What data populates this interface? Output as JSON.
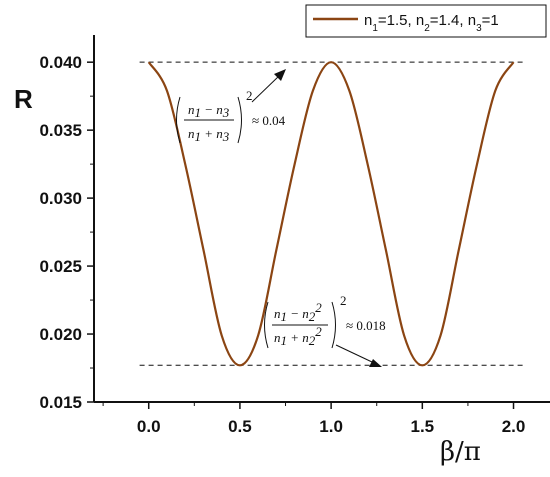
{
  "chart_data": {
    "type": "line",
    "xlabel": "β/π",
    "ylabel": "R",
    "xlim": [
      -0.3,
      2.2
    ],
    "ylim": [
      0.015,
      0.042
    ],
    "x_ticks": [
      "0.0",
      "0.5",
      "1.0",
      "1.5",
      "2.0"
    ],
    "x_tick_values": [
      0,
      0.5,
      1,
      1.5,
      2
    ],
    "y_ticks": [
      "0.015",
      "0.020",
      "0.025",
      "0.030",
      "0.035",
      "0.040"
    ],
    "y_tick_values": [
      0.015,
      0.02,
      0.025,
      0.03,
      0.035,
      0.04
    ],
    "series": [
      {
        "name": "n1=1.5, n2=1.4, n3=1",
        "color": "#8B4513",
        "x": [
          0,
          0.1,
          0.2,
          0.3,
          0.4,
          0.5,
          0.6,
          0.7,
          0.8,
          0.9,
          1.0,
          1.1,
          1.2,
          1.3,
          1.4,
          1.5,
          1.6,
          1.7,
          1.8,
          1.9,
          2.0
        ],
        "y": [
          0.04,
          0.0379,
          0.0325,
          0.0262,
          0.0199,
          0.0177,
          0.0199,
          0.0262,
          0.0325,
          0.0379,
          0.04,
          0.0379,
          0.0325,
          0.0262,
          0.0199,
          0.0177,
          0.0199,
          0.0262,
          0.0325,
          0.0379,
          0.04
        ]
      }
    ],
    "reference_lines": [
      {
        "y": 0.04,
        "style": "dashed"
      },
      {
        "y": 0.0177,
        "style": "dashed"
      }
    ],
    "legend": {
      "position": "top-right",
      "parts": [
        "n",
        "1",
        "=1.5, n",
        "2",
        "=1.4, n",
        "3",
        "=1"
      ]
    },
    "annotations": [
      {
        "label": "top-formula",
        "n1": "n",
        "n1sub": "1",
        "n3": "n",
        "n3sub": "3",
        "exp": "2",
        "value": "≈ 0.04",
        "arrow_to": [
          0.8,
          0.04
        ]
      },
      {
        "label": "bottom-formula",
        "n1": "n",
        "n1sub": "1",
        "n2": "n",
        "n2sub": "2",
        "n2sup": "2",
        "exp": "2",
        "value": "≈ 0.018",
        "arrow_to": [
          1.27,
          0.0177
        ]
      }
    ]
  }
}
